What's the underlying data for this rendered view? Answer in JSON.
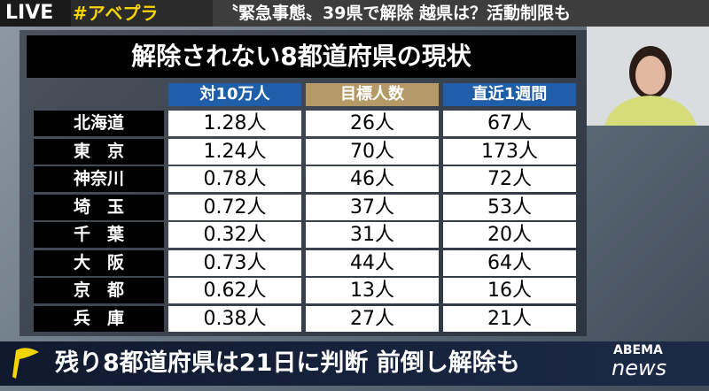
{
  "header": {
    "live": "LIVE",
    "hashtag": "#アベプラ",
    "headline": "〝緊急事態〟39県で解除 越県は？活動制限も"
  },
  "table": {
    "title": "解除されない8都道府県の現状",
    "columns": [
      "対10万人",
      "目標人数",
      "直近1週間"
    ],
    "rows": [
      [
        "北海道",
        "1.28人",
        "26人",
        "67人"
      ],
      [
        "東　京",
        "1.24人",
        "70人",
        "173人"
      ],
      [
        "神奈川",
        "0.78人",
        "46人",
        "72人"
      ],
      [
        "埼　玉",
        "0.72人",
        "37人",
        "53人"
      ],
      [
        "千　葉",
        "0.32人",
        "31人",
        "20人"
      ],
      [
        "大　阪",
        "0.73人",
        "44人",
        "64人"
      ],
      [
        "京　都",
        "0.62人",
        "13人",
        "16人"
      ],
      [
        "兵　庫",
        "0.38人",
        "27人",
        "21人"
      ]
    ]
  },
  "caption": "残り8都道府県は21日に判断 前倒し解除も",
  "logo": {
    "brand": "ABEMA",
    "sub": "news"
  }
}
